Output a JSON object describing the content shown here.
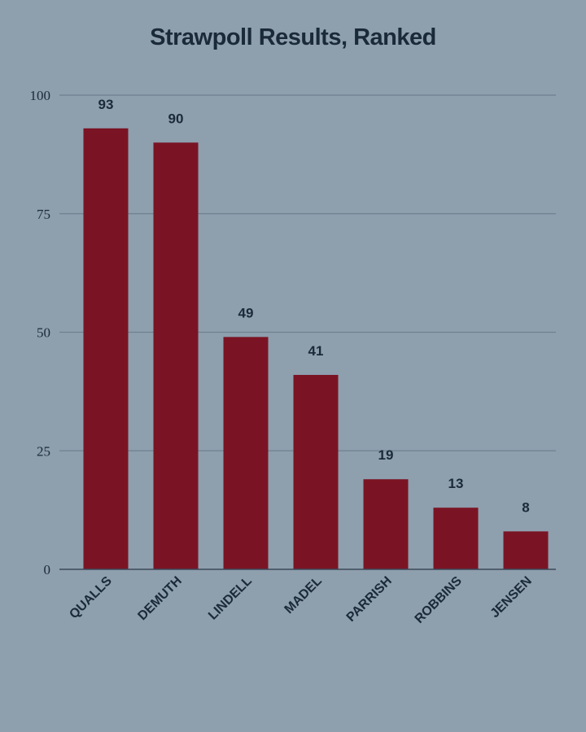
{
  "chart_data": {
    "type": "bar",
    "title": "Strawpoll Results, Ranked",
    "categories": [
      "QUALLS",
      "DEMUTH",
      "LINDELL",
      "MADEL",
      "PARRISH",
      "ROBBINS",
      "JENSEN"
    ],
    "values": [
      93,
      90,
      49,
      41,
      19,
      13,
      8
    ],
    "data_labels": [
      "93",
      "90",
      "49",
      "41",
      "19",
      "13",
      "8"
    ],
    "yticks": [
      0,
      25,
      50,
      75,
      100
    ],
    "ylim": [
      0,
      100
    ],
    "grid": true,
    "legend": "none",
    "colors": {
      "bar": "#7a1424",
      "grid": "#6f8191",
      "axis": "#3a4a58",
      "background": "#8e9fae",
      "text": "#1b2a38"
    }
  }
}
